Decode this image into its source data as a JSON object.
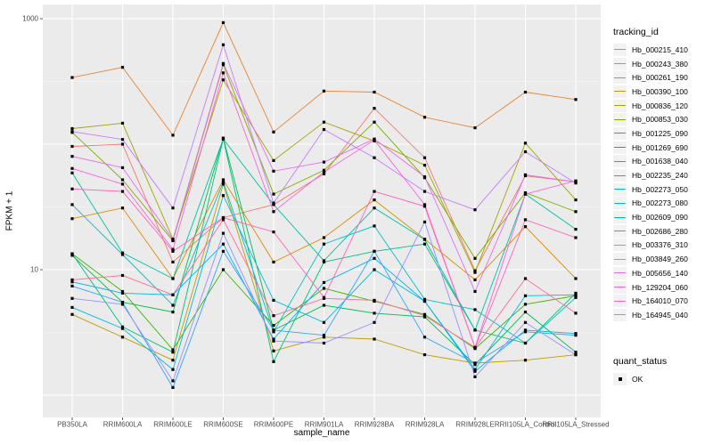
{
  "colors": {
    "panel_background": "#EBEBEB",
    "gridline": "#FFFFFF",
    "tick_label": "#4D4D4D",
    "axis_title": "#000000",
    "legend_key_fill": "#F2F2F2",
    "point": "#000000",
    "tick_mark": "#333333"
  },
  "legend": {
    "title": "tracking_id",
    "quant": {
      "title": "quant_status",
      "items": [
        {
          "label": "OK",
          "marker": "black-square"
        }
      ]
    }
  },
  "chart_data": {
    "type": "line",
    "title": "",
    "xlabel": "sample_name",
    "ylabel": "FPKM + 1",
    "x_type": "categorical",
    "y_scale": "log10",
    "ylim": [
      0.7,
      1300
    ],
    "grid": true,
    "legend_position": "right",
    "y_tick_values": [
      1000,
      10
    ],
    "y_tick_labels": [
      "1000",
      "10"
    ],
    "y_major_gridlines": [
      1,
      10,
      100,
      1000
    ],
    "y_minor_gridlines": [
      3.162,
      31.62,
      316.2
    ],
    "point_marker": {
      "shape": "square",
      "color": "#000000",
      "meaning": "quant_status OK"
    },
    "categories": [
      "PB350LA",
      "RRIM600LA",
      "RRIM600LE",
      "RRIM600SE",
      "RRIM600PE",
      "RRIM901LA",
      "RRIM928BA",
      "RRIM928LA",
      "RRIM928LE",
      "RRII105LA_Control",
      "RRII105LA_Stressed"
    ],
    "series": [
      {
        "name": "Hb_000215_410",
        "color": "#F8766D",
        "values": [
          96,
          100,
          11.5,
          26,
          33,
          58,
          193,
          78,
          9.8,
          56,
          50
        ]
      },
      {
        "name": "Hb_000243_380",
        "color": "#EA8331",
        "values": [
          340,
          410,
          118,
          930,
          125,
          265,
          260,
          164,
          135,
          260,
          227
        ]
      },
      {
        "name": "Hb_000261_190",
        "color": "#D89000",
        "values": [
          25.5,
          31,
          8.5,
          52,
          11.5,
          18,
          36,
          17.5,
          8.3,
          22,
          8.5
        ]
      },
      {
        "name": "Hb_000390_100",
        "color": "#C09B00",
        "values": [
          4.4,
          2.9,
          1.9,
          48,
          2.25,
          2.9,
          2.8,
          2.1,
          1.8,
          1.9,
          2.1
        ]
      },
      {
        "name": "Hb_000836_120",
        "color": "#A3A500",
        "values": [
          133,
          147,
          17.5,
          325,
          74,
          150,
          106,
          68,
          9.5,
          102,
          36
        ]
      },
      {
        "name": "Hb_000853_030",
        "color": "#7CAE00",
        "values": [
          124,
          52,
          17,
          430,
          40,
          62,
          150,
          54,
          12.3,
          41,
          29
        ]
      },
      {
        "name": "Hb_001225_090",
        "color": "#39B600",
        "values": [
          13.4,
          6.7,
          2.3,
          10,
          3.6,
          7.1,
          5.6,
          4.4,
          2.35,
          5.3,
          6.2
        ]
      },
      {
        "name": "Hb_001269_690",
        "color": "#00BB4E",
        "values": [
          13.0,
          5.5,
          4.6,
          112,
          3.3,
          5.2,
          4.5,
          4.2,
          1.75,
          4.6,
          2.2
        ]
      },
      {
        "name": "Hb_001638_040",
        "color": "#00BF7D",
        "values": [
          13.4,
          3.5,
          2.2,
          110,
          1.85,
          11.5,
          14,
          16,
          3.3,
          2.6,
          6.5
        ]
      },
      {
        "name": "Hb_002235_240",
        "color": "#00C1A3",
        "values": [
          59,
          13.6,
          8.5,
          110,
          33,
          11.8,
          31,
          17.4,
          3.3,
          40,
          21
        ]
      },
      {
        "name": "Hb_002273_050",
        "color": "#00BFC4",
        "values": [
          33,
          13.2,
          5.2,
          50,
          3.2,
          16,
          22.3,
          5.8,
          4.8,
          2.6,
          6.0
        ]
      },
      {
        "name": "Hb_002273_080",
        "color": "#00BAE0",
        "values": [
          5.0,
          3.4,
          1.6,
          39,
          5.7,
          3.8,
          10,
          5.6,
          1.6,
          6.2,
          6.3
        ]
      },
      {
        "name": "Hb_002609_090",
        "color": "#00B0F6",
        "values": [
          8.0,
          6.5,
          6.3,
          16,
          2.8,
          7.9,
          12.3,
          5.6,
          1.55,
          3.3,
          3.1
        ]
      },
      {
        "name": "Hb_002686_280",
        "color": "#35A2FF",
        "values": [
          7.4,
          5.5,
          1.15,
          14,
          3.3,
          3.0,
          14,
          2.9,
          1.8,
          3.2,
          3.0
        ]
      },
      {
        "name": "Hb_003376_310",
        "color": "#9590FF",
        "values": [
          5.9,
          5.3,
          1.3,
          19.5,
          2.7,
          2.6,
          3.8,
          24,
          1.4,
          3.8,
          2.1
        ]
      },
      {
        "name": "Hb_003849_260",
        "color": "#C77CFF",
        "values": [
          126,
          109,
          31,
          620,
          34,
          131,
          78,
          42,
          30,
          87,
          49
        ]
      },
      {
        "name": "Hb_005656_140",
        "color": "#E76BF3",
        "values": [
          80,
          65,
          17.4,
          440,
          61,
          72,
          110,
          55,
          6.7,
          57,
          50
        ]
      },
      {
        "name": "Hb_129204_060",
        "color": "#FA62DB",
        "values": [
          64,
          48,
          14.5,
          370,
          29,
          60,
          108,
          33,
          2.4,
          40,
          51
        ]
      },
      {
        "name": "Hb_164010_070",
        "color": "#FF62BC",
        "values": [
          44,
          42,
          14,
          26,
          20,
          6.0,
          42,
          32,
          2.4,
          25,
          18
        ]
      },
      {
        "name": "Hb_164945_040",
        "color": "#FF6A98",
        "values": [
          8.3,
          9.0,
          6.3,
          25,
          4.3,
          5.9,
          5.7,
          4.3,
          2.4,
          8.5,
          4.5
        ]
      }
    ]
  }
}
